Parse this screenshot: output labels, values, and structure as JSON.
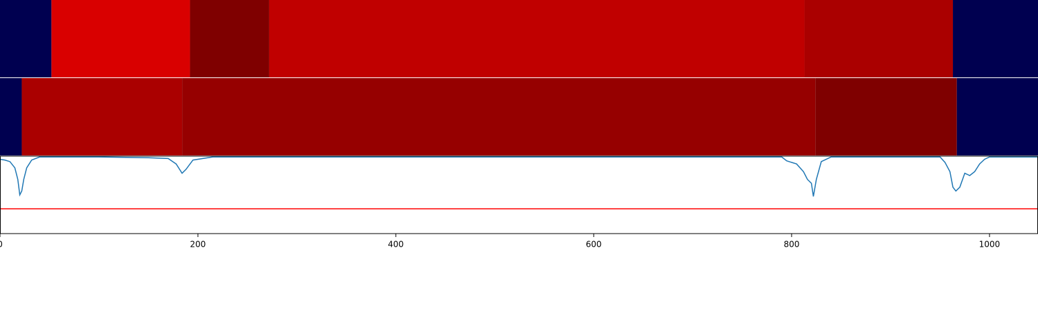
{
  "chart_data": {
    "type": "line",
    "xlim": [
      0,
      1049
    ],
    "xticks": [
      0,
      200,
      400,
      600,
      800,
      1000
    ],
    "bands": [
      {
        "edges": [
          0,
          52,
          192,
          272,
          813,
          963,
          1049
        ],
        "colors": [
          "#000050",
          "#d90000",
          "#7f0000",
          "#c00000",
          "#aa0000",
          "#000050"
        ]
      },
      {
        "edges": [
          0,
          22,
          184,
          824,
          967,
          1049
        ],
        "colors": [
          "#000050",
          "#aa0000",
          "#960000",
          "#7f0000",
          "#000050"
        ]
      }
    ],
    "ylim": [
      0,
      1
    ],
    "x": [
      0,
      5,
      10,
      15,
      18,
      20,
      22,
      24,
      27,
      32,
      40,
      100,
      150,
      170,
      178,
      184,
      188,
      195,
      210,
      215,
      400,
      600,
      790,
      795,
      805,
      812,
      816,
      820,
      822,
      825,
      830,
      840,
      950,
      955,
      960,
      963,
      966,
      970,
      975,
      980,
      985,
      990,
      995,
      1000,
      1049
    ],
    "values": [
      0.96,
      0.95,
      0.93,
      0.85,
      0.7,
      0.5,
      0.55,
      0.7,
      0.85,
      0.95,
      0.99,
      0.99,
      0.98,
      0.97,
      0.9,
      0.78,
      0.83,
      0.95,
      0.98,
      0.99,
      0.99,
      0.99,
      0.99,
      0.94,
      0.9,
      0.8,
      0.7,
      0.65,
      0.48,
      0.7,
      0.93,
      0.99,
      0.99,
      0.92,
      0.8,
      0.6,
      0.55,
      0.6,
      0.78,
      0.75,
      0.8,
      0.9,
      0.96,
      0.99,
      0.99
    ],
    "color": "#1f77b4",
    "hline": 0.32,
    "hline_color": "#ff0000"
  }
}
